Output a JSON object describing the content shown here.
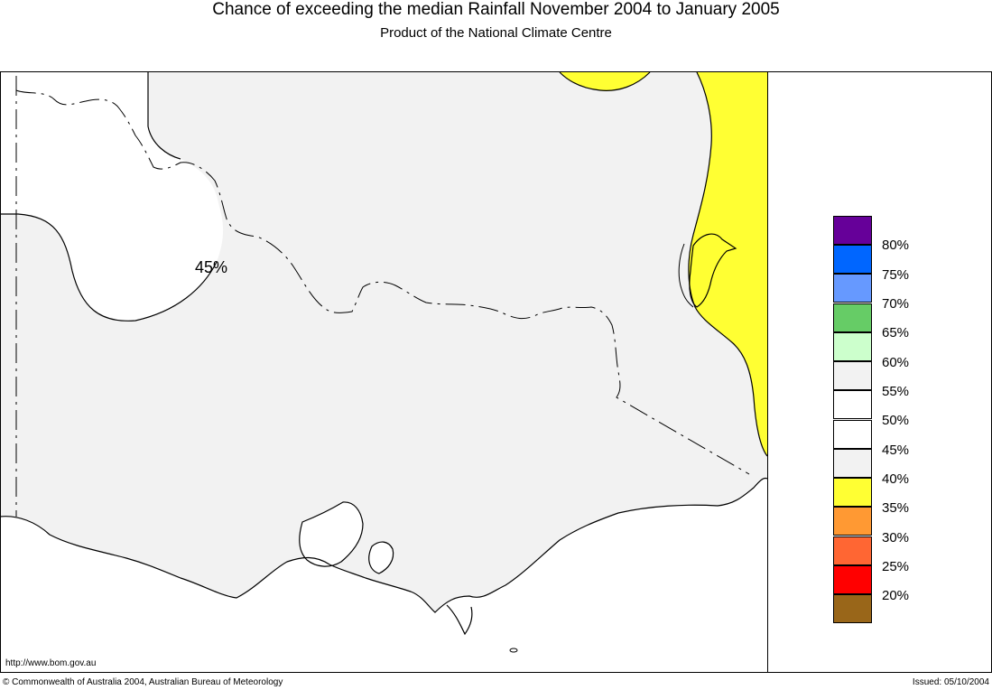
{
  "title": "Chance of exceeding the median Rainfall November 2004 to January 2005",
  "subtitle": "Product of the National Climate Centre",
  "map": {
    "contour_label": "45%",
    "url": "http://www.bom.gov.au"
  },
  "legend": {
    "swatches": [
      {
        "color": "#660099"
      },
      {
        "color": "#0066ff"
      },
      {
        "color": "#6699ff"
      },
      {
        "color": "#66cc66"
      },
      {
        "color": "#ccffcc"
      },
      {
        "color": "#f2f2f2"
      },
      {
        "color": "#ffffff"
      },
      {
        "color": "#ffffff"
      },
      {
        "color": "#f2f2f2"
      },
      {
        "color": "#ffff33"
      },
      {
        "color": "#ff9933"
      },
      {
        "color": "#ff6633"
      },
      {
        "color": "#ff0000"
      },
      {
        "color": "#996619"
      }
    ],
    "labels": [
      "80%",
      "75%",
      "70%",
      "65%",
      "60%",
      "55%",
      "50%",
      "45%",
      "40%",
      "35%",
      "30%",
      "25%",
      "20%"
    ]
  },
  "footer": {
    "copyright": "© Commonwealth of Australia 2004, Australian Bureau of Meteorology",
    "issued": "Issued: 05/10/2004"
  },
  "colors": {
    "yellow": "#ffff33",
    "light_grey": "#f2f2f2",
    "white": "#ffffff"
  }
}
